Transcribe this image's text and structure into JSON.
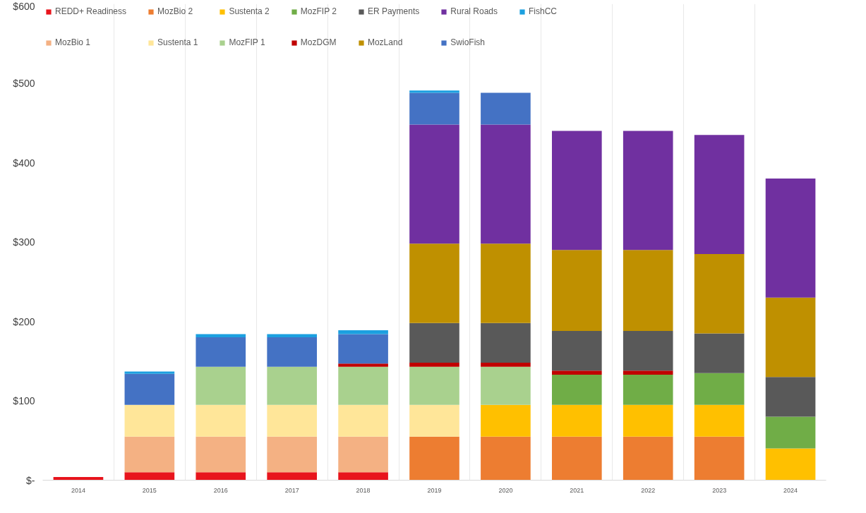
{
  "chart_data": {
    "type": "bar",
    "stacked": true,
    "categories": [
      "2014",
      "2015",
      "2016",
      "2017",
      "2018",
      "2019",
      "2020",
      "2021",
      "2022",
      "2023",
      "2024"
    ],
    "series": [
      {
        "name": "REDD+ Readiness",
        "color": "#e8141c",
        "values": [
          4,
          10,
          10,
          10,
          10,
          null,
          null,
          null,
          null,
          null,
          null
        ]
      },
      {
        "name": "MozBio 1",
        "color": "#f4b183",
        "values": [
          null,
          45,
          45,
          45,
          45,
          null,
          null,
          null,
          null,
          null,
          null
        ]
      },
      {
        "name": "MozBio 2",
        "color": "#ed7d31",
        "values": [
          null,
          null,
          null,
          null,
          null,
          55,
          55,
          55,
          55,
          55,
          null
        ]
      },
      {
        "name": "Sustenta 1",
        "color": "#ffe699",
        "values": [
          null,
          40,
          40,
          40,
          40,
          40,
          null,
          null,
          null,
          null,
          null
        ]
      },
      {
        "name": "Sustenta 2",
        "color": "#ffc000",
        "values": [
          null,
          null,
          null,
          null,
          null,
          null,
          40,
          40,
          40,
          40,
          40
        ]
      },
      {
        "name": "MozFIP 1",
        "color": "#a9d18e",
        "values": [
          null,
          null,
          48,
          48,
          48,
          48,
          48,
          null,
          null,
          null,
          null
        ]
      },
      {
        "name": "MozFIP 2",
        "color": "#70ad47",
        "values": [
          null,
          null,
          null,
          null,
          null,
          null,
          null,
          38,
          38,
          40,
          40
        ]
      },
      {
        "name": "MozDGM",
        "color": "#c00000",
        "values": [
          null,
          null,
          null,
          null,
          4,
          5,
          5,
          5,
          5,
          null,
          null
        ]
      },
      {
        "name": "ER Payments",
        "color": "#595959",
        "values": [
          null,
          null,
          null,
          null,
          null,
          50,
          50,
          50,
          50,
          50,
          50
        ]
      },
      {
        "name": "MozLand",
        "color": "#bf9000",
        "values": [
          null,
          null,
          null,
          null,
          null,
          100,
          100,
          102,
          102,
          100,
          100
        ]
      },
      {
        "name": "Rural Roads",
        "color": "#7030a0",
        "values": [
          null,
          null,
          null,
          null,
          null,
          150,
          150,
          150,
          150,
          150,
          150
        ]
      },
      {
        "name": "SwioFish",
        "color": "#4472c4",
        "values": [
          null,
          39,
          37,
          37,
          37,
          40,
          40,
          null,
          null,
          null,
          null
        ]
      },
      {
        "name": "FishCC",
        "color": "#1ca0e0",
        "values": [
          null,
          3,
          4,
          4,
          5,
          3,
          null,
          null,
          null,
          null,
          null
        ]
      }
    ],
    "ylim": [
      0,
      600
    ],
    "yticks": [
      {
        "value": 0,
        "label": "$-"
      },
      {
        "value": 100,
        "label": "$100"
      },
      {
        "value": 200,
        "label": "$200"
      },
      {
        "value": 300,
        "label": "$300"
      },
      {
        "value": 400,
        "label": "$400"
      },
      {
        "value": 500,
        "label": "$500"
      },
      {
        "value": 600,
        "label": "$600"
      }
    ],
    "grid": "x",
    "legend": "top"
  }
}
